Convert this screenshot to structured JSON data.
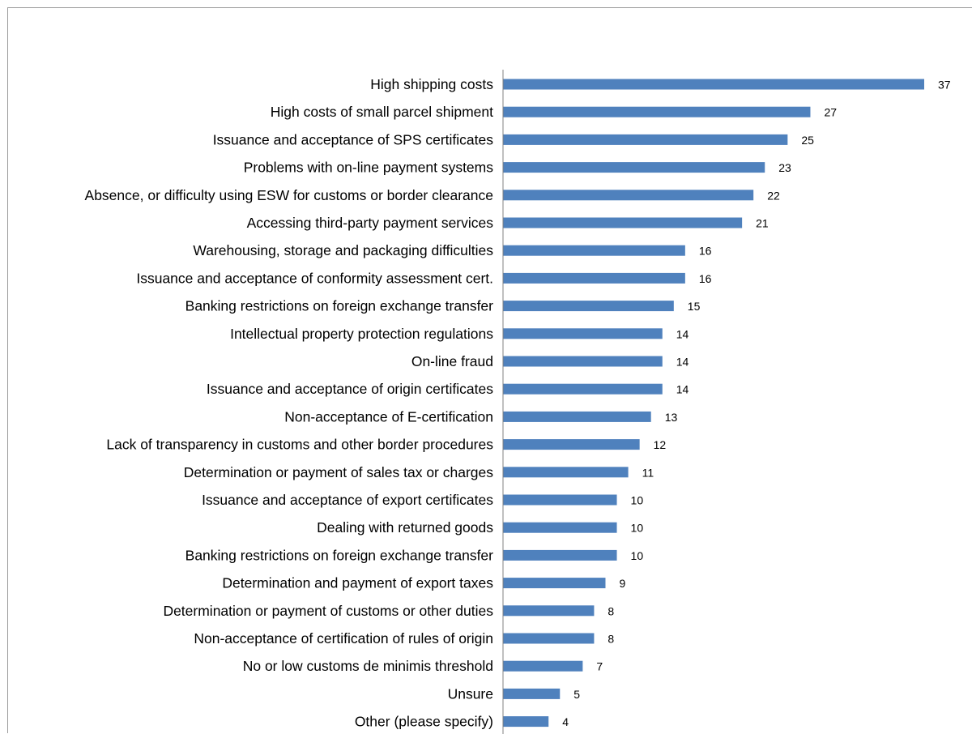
{
  "chart_data": {
    "type": "bar",
    "orientation": "horizontal",
    "title": "",
    "xlabel": "",
    "ylabel": "",
    "grid": false,
    "legend": "none",
    "bar_color": "#4f81bd",
    "xlim": [
      0,
      37
    ],
    "categories": [
      "High shipping costs",
      "High costs of small parcel shipment",
      "Issuance and acceptance of SPS certificates",
      "Problems with on-line payment systems",
      "Absence, or difficulty using ESW for customs or border clearance",
      "Accessing third-party payment services",
      "Warehousing, storage and packaging difficulties",
      "Issuance and acceptance of conformity assessment cert.",
      "Banking restrictions on foreign exchange transfer",
      "Intellectual property protection regulations",
      "On-line fraud",
      "Issuance and acceptance of origin certificates",
      "Non-acceptance of E-certification",
      "Lack of transparency in customs and other border procedures",
      "Determination or payment of sales tax or charges",
      "Issuance and acceptance of export certificates",
      "Dealing with returned goods",
      "Banking restrictions on foreign exchange transfer",
      "Determination and payment of export taxes",
      "Determination or payment of customs or other duties",
      "Non-acceptance of certification of rules of origin",
      "No or low customs de minimis threshold",
      "Unsure",
      "Other (please specify)"
    ],
    "values": [
      37,
      27,
      25,
      23,
      22,
      21,
      16,
      16,
      15,
      14,
      14,
      14,
      13,
      12,
      11,
      10,
      10,
      10,
      9,
      8,
      8,
      7,
      5,
      4
    ]
  }
}
